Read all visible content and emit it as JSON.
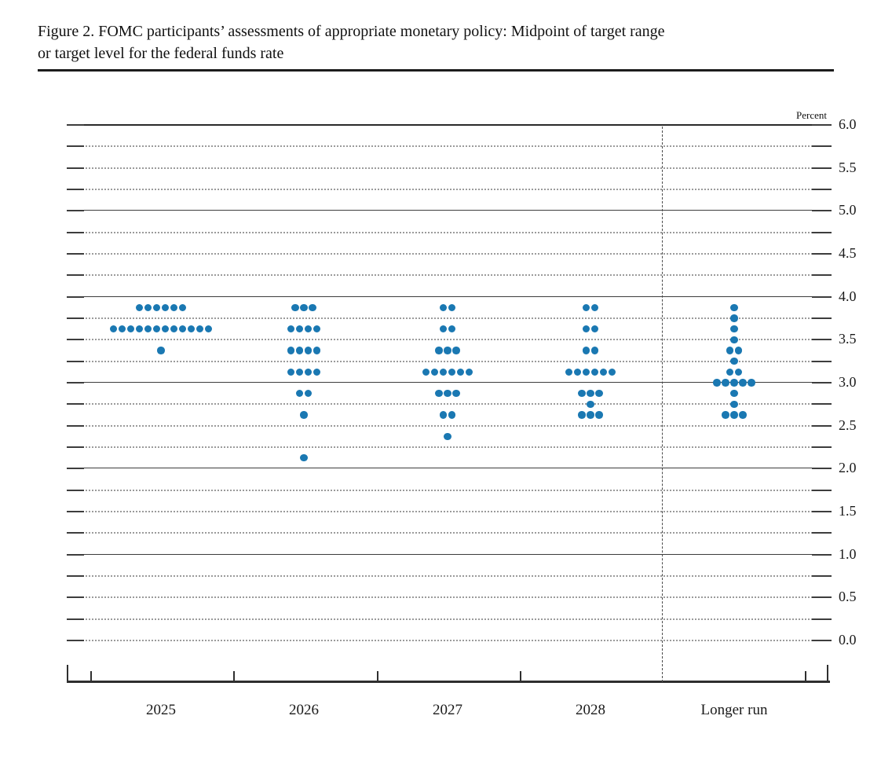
{
  "title": {
    "line1": "Figure 2. FOMC participants’ assessments of appropriate monetary policy: Midpoint of target range",
    "line2": "or target level for the federal funds rate"
  },
  "chart_data": {
    "type": "scatter",
    "title": "Figure 2. FOMC participants’ assessments of appropriate monetary policy: Midpoint of target range or target level for the federal funds rate",
    "unit_label": "Percent",
    "x_categories": [
      "2025",
      "2026",
      "2027",
      "2028",
      "Longer run"
    ],
    "y_tick_labels": [
      "6.0",
      "5.5",
      "5.0",
      "4.5",
      "4.0",
      "3.5",
      "3.0",
      "2.5",
      "2.0",
      "1.5",
      "1.0",
      "0.5",
      "0.0"
    ],
    "y_range": [
      0.0,
      6.0
    ],
    "grid_step": 0.25,
    "legend_position": "none",
    "colors": {
      "dot": "#1a78b2",
      "grid_solid": "#3d3d3d",
      "grid_dotted": "#9b9b9b"
    },
    "series": [
      {
        "category": "2025",
        "dots": [
          {
            "rate": 3.875,
            "count": 6
          },
          {
            "rate": 3.625,
            "count": 12
          },
          {
            "rate": 3.375,
            "count": 1
          }
        ]
      },
      {
        "category": "2026",
        "dots": [
          {
            "rate": 3.875,
            "count": 3
          },
          {
            "rate": 3.625,
            "count": 4
          },
          {
            "rate": 3.375,
            "count": 4
          },
          {
            "rate": 3.125,
            "count": 4
          },
          {
            "rate": 2.875,
            "count": 2
          },
          {
            "rate": 2.625,
            "count": 1
          },
          {
            "rate": 2.125,
            "count": 1
          }
        ]
      },
      {
        "category": "2027",
        "dots": [
          {
            "rate": 3.875,
            "count": 2
          },
          {
            "rate": 3.625,
            "count": 2
          },
          {
            "rate": 3.375,
            "count": 3
          },
          {
            "rate": 3.125,
            "count": 6
          },
          {
            "rate": 2.875,
            "count": 3
          },
          {
            "rate": 2.625,
            "count": 2
          },
          {
            "rate": 2.375,
            "count": 1
          }
        ]
      },
      {
        "category": "2028",
        "dots": [
          {
            "rate": 3.875,
            "count": 2
          },
          {
            "rate": 3.625,
            "count": 2
          },
          {
            "rate": 3.375,
            "count": 2
          },
          {
            "rate": 3.125,
            "count": 6
          },
          {
            "rate": 2.875,
            "count": 3
          },
          {
            "rate": 2.75,
            "count": 1
          },
          {
            "rate": 2.625,
            "count": 3
          }
        ]
      },
      {
        "category": "Longer run",
        "dots": [
          {
            "rate": 3.875,
            "count": 1
          },
          {
            "rate": 3.75,
            "count": 1
          },
          {
            "rate": 3.625,
            "count": 1
          },
          {
            "rate": 3.5,
            "count": 1
          },
          {
            "rate": 3.375,
            "count": 2
          },
          {
            "rate": 3.25,
            "count": 1
          },
          {
            "rate": 3.125,
            "count": 2
          },
          {
            "rate": 3.0,
            "count": 5
          },
          {
            "rate": 2.875,
            "count": 1
          },
          {
            "rate": 2.75,
            "count": 1
          },
          {
            "rate": 2.625,
            "count": 3
          }
        ]
      }
    ]
  }
}
